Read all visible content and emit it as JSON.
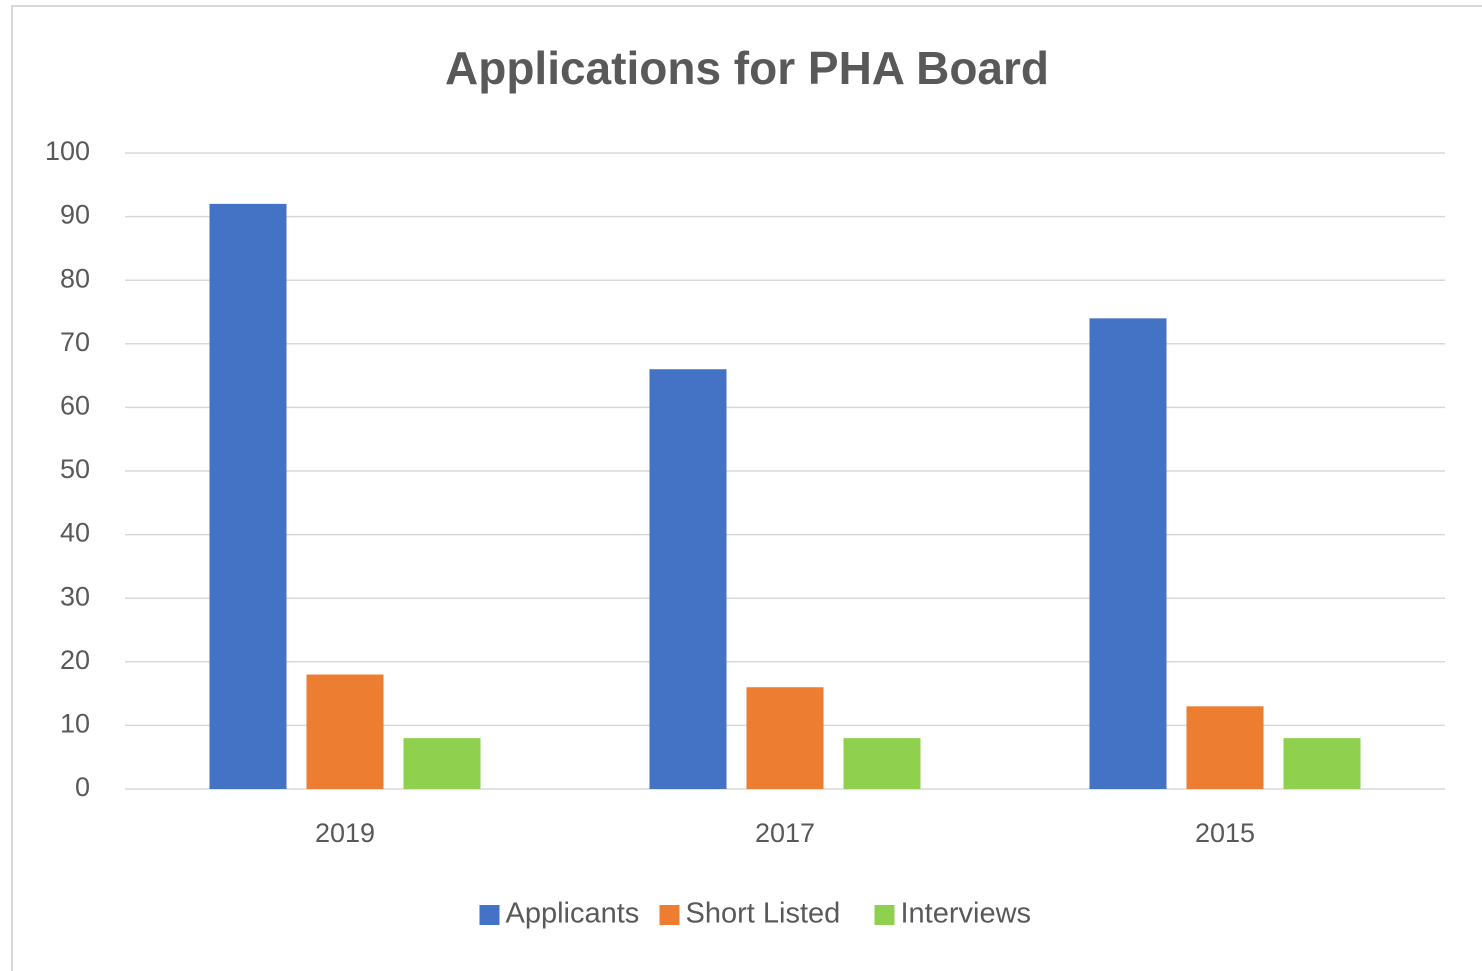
{
  "chart_data": {
    "type": "bar",
    "title": "Applications for PHA Board",
    "categories": [
      "2019",
      "2017",
      "2015"
    ],
    "series": [
      {
        "name": "Applicants",
        "color": "#4472c4",
        "values": [
          92,
          66,
          74
        ]
      },
      {
        "name": "Short Listed",
        "color": "#ed7d31",
        "values": [
          18,
          16,
          13
        ]
      },
      {
        "name": "Interviews",
        "color": "#8fd14f",
        "values": [
          8,
          8,
          8
        ]
      }
    ],
    "ylim": [
      0,
      100
    ],
    "yticks": [
      0,
      10,
      20,
      30,
      40,
      50,
      60,
      70,
      80,
      90,
      100
    ],
    "grid": true,
    "legend": "bottom"
  }
}
